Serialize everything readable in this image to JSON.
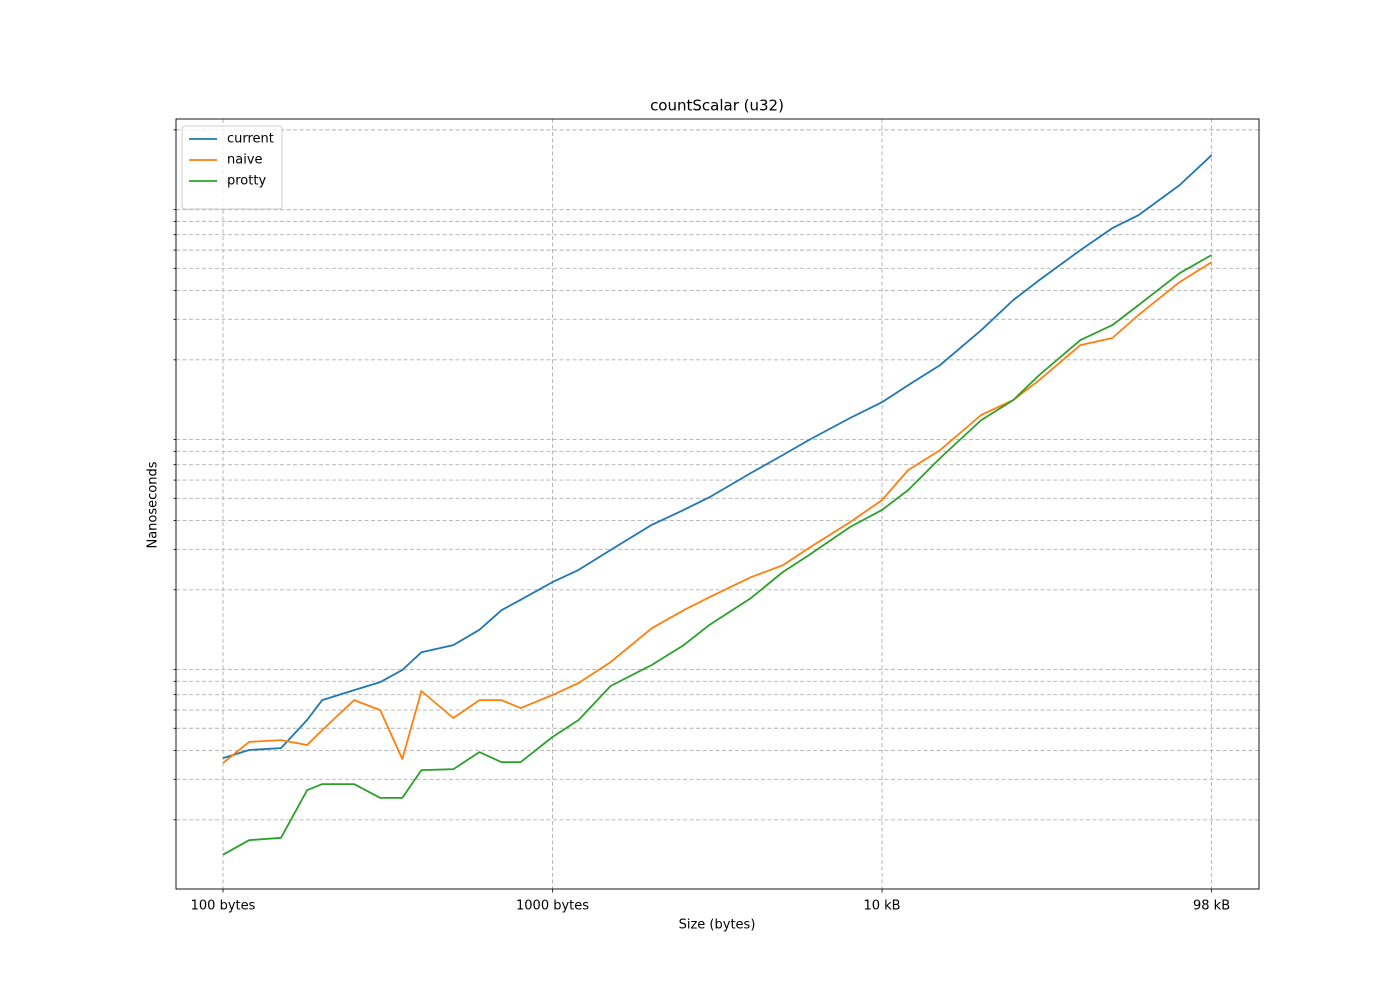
{
  "chart_data": {
    "type": "line",
    "title": "countScalar (u32)",
    "x_label": "Size (bytes)",
    "y_label": "Nanoseconds",
    "x_scale": "log",
    "y_scale": "log",
    "grid": true,
    "legend_position": "upper left",
    "xlim": [
      72,
      139300
    ],
    "ylim": [
      10,
      22300
    ],
    "xticks": [
      {
        "value": 100,
        "label": "100 bytes"
      },
      {
        "value": 1000,
        "label": "1000 bytes"
      },
      {
        "value": 10000,
        "label": "10 kB"
      },
      {
        "value": 100000,
        "label": "98 kB"
      }
    ],
    "yticks": [
      20,
      30,
      40,
      50,
      60,
      70,
      80,
      90,
      200,
      300,
      400,
      500,
      600,
      700,
      800,
      900,
      2000,
      3000,
      4000,
      5000,
      6000,
      7000,
      8000,
      9000,
      20000
    ],
    "x": [
      100,
      120,
      150,
      180,
      200,
      250,
      300,
      350,
      400,
      500,
      600,
      700,
      800,
      1000,
      1200,
      1500,
      2000,
      2500,
      3000,
      4000,
      5000,
      6000,
      8000,
      10000,
      12000,
      15000,
      20000,
      25000,
      30000,
      40000,
      50000,
      60000,
      80000,
      100000
    ],
    "series": [
      {
        "name": "current",
        "color": "#1f77b4",
        "values": [
          37.1,
          40.2,
          41.0,
          54.3,
          66.3,
          73.3,
          79.4,
          89.6,
          107,
          115,
          134,
          163,
          181,
          216,
          244,
          298,
          383,
          445,
          506,
          644,
          771,
          896,
          1117,
          1309,
          1552,
          1897,
          2692,
          3639,
          4446,
          5998,
          7482,
          8511,
          11510,
          15520
        ]
      },
      {
        "name": "naive",
        "color": "#ff7f0e",
        "values": [
          35.3,
          43.6,
          44.4,
          42.3,
          49.1,
          66.3,
          60.0,
          36.7,
          72.6,
          55.4,
          66.3,
          66.3,
          61.2,
          69.7,
          78.7,
          97.0,
          136,
          163,
          186,
          227,
          256,
          304,
          394,
          491,
          663,
          810,
          1151,
          1337,
          1633,
          2317,
          2489,
          3133,
          4355,
          5321
        ]
      },
      {
        "name": "protty",
        "color": "#2ca02c",
        "values": [
          14.1,
          16.3,
          16.7,
          26.9,
          28.6,
          28.6,
          24.9,
          24.9,
          32.9,
          33.2,
          39.4,
          35.6,
          35.6,
          45.8,
          54.3,
          76.3,
          94.2,
          115,
          141,
          184,
          239,
          283,
          375,
          445,
          543,
          748,
          1094,
          1337,
          1718,
          2438,
          2831,
          3459,
          4764,
          5715
        ]
      }
    ]
  }
}
